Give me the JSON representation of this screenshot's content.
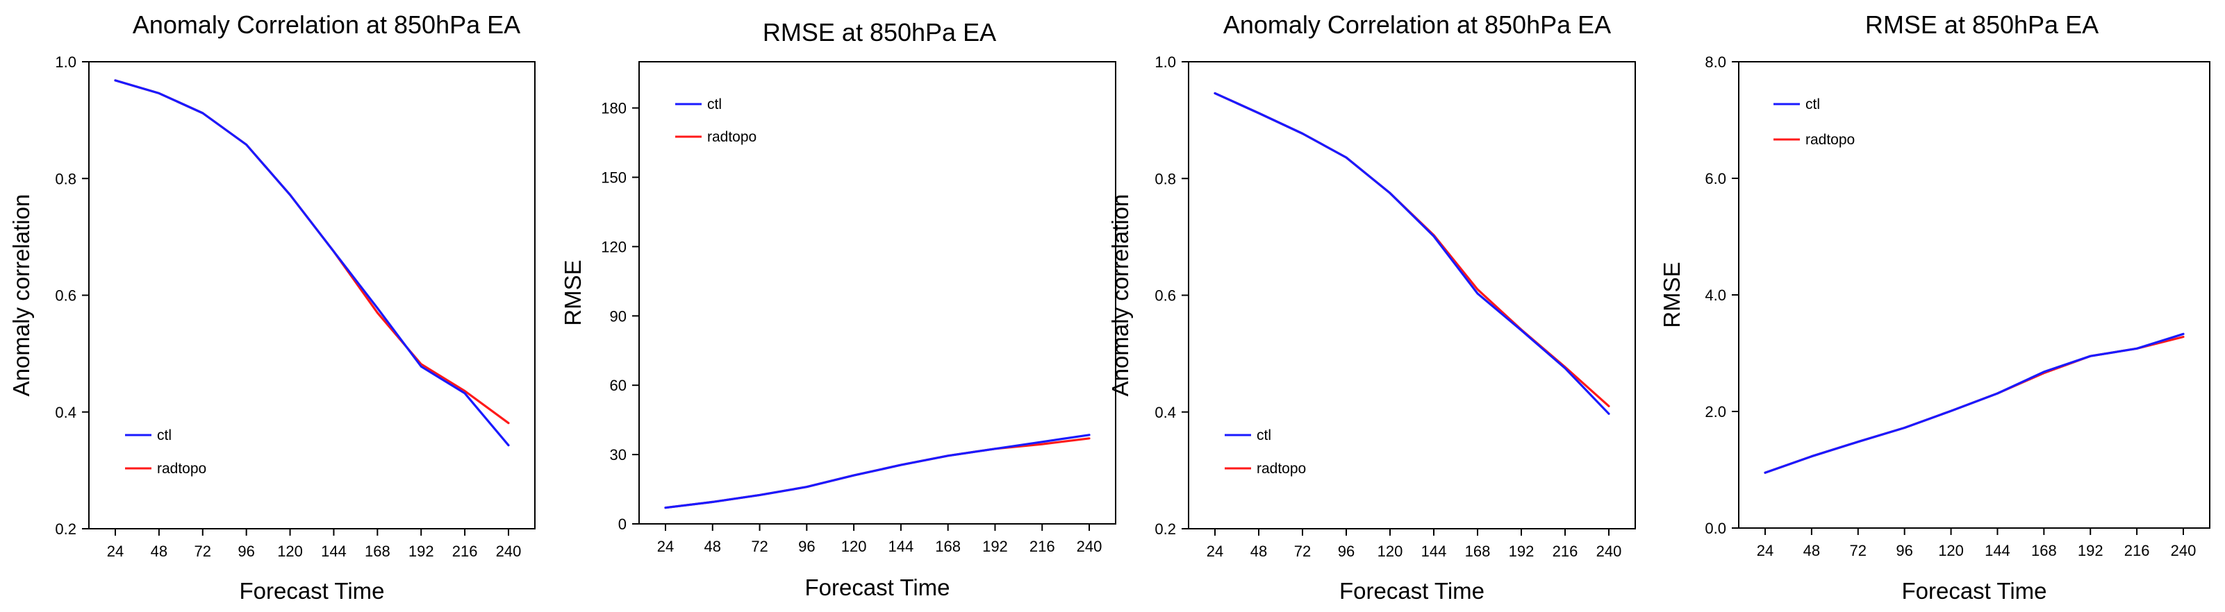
{
  "chart_data": [
    {
      "type": "line",
      "title": "Anomaly Correlation at 850hPa EA",
      "xlabel": "Forecast Time",
      "ylabel": "Anomaly correlation",
      "categories": [
        "24",
        "48",
        "72",
        "96",
        "120",
        "144",
        "168",
        "192",
        "216",
        "240"
      ],
      "ylim": [
        0.2,
        1.0
      ],
      "yticks": [
        0.2,
        0.4,
        0.6,
        0.8,
        1.0
      ],
      "ytick_labels": [
        "0.2",
        "0.4",
        "0.6",
        "0.8",
        "1.0"
      ],
      "legend_position": "bottom-left",
      "series": [
        {
          "name": "ctl",
          "color": "#1a1aff",
          "values": [
            0.968,
            0.946,
            0.912,
            0.858,
            0.772,
            0.675,
            0.578,
            0.478,
            0.432,
            0.343
          ]
        },
        {
          "name": "radtopo",
          "color": "#ff1a1a",
          "values": [
            0.968,
            0.946,
            0.912,
            0.858,
            0.772,
            0.675,
            0.57,
            0.482,
            0.436,
            0.381
          ]
        }
      ]
    },
    {
      "type": "line",
      "title": "RMSE at 850hPa EA",
      "xlabel": "Forecast Time",
      "ylabel": "RMSE",
      "categories": [
        "24",
        "48",
        "72",
        "96",
        "120",
        "144",
        "168",
        "192",
        "216",
        "240"
      ],
      "ylim": [
        0,
        200
      ],
      "yticks": [
        0,
        30,
        60,
        90,
        120,
        150,
        180
      ],
      "ytick_labels": [
        "0",
        "30",
        "60",
        "90",
        "120",
        "150",
        "180"
      ],
      "legend_position": "top-left",
      "series": [
        {
          "name": "ctl",
          "color": "#1a1aff",
          "values": [
            7.0,
            9.5,
            12.5,
            16.0,
            21.0,
            25.5,
            29.5,
            32.5,
            35.5,
            38.5
          ]
        },
        {
          "name": "radtopo",
          "color": "#ff1a1a",
          "values": [
            7.0,
            9.5,
            12.5,
            16.0,
            21.0,
            25.5,
            29.5,
            32.5,
            34.5,
            37.0
          ]
        }
      ]
    },
    {
      "type": "line",
      "title": "Anomaly Correlation at 850hPa EA",
      "xlabel": "Forecast Time",
      "ylabel": "Anomaly correlation",
      "categories": [
        "24",
        "48",
        "72",
        "96",
        "120",
        "144",
        "168",
        "192",
        "216",
        "240"
      ],
      "ylim": [
        0.2,
        1.0
      ],
      "yticks": [
        0.2,
        0.4,
        0.6,
        0.8,
        1.0
      ],
      "ytick_labels": [
        "0.2",
        "0.4",
        "0.6",
        "0.8",
        "1.0"
      ],
      "legend_position": "bottom-left",
      "series": [
        {
          "name": "ctl",
          "color": "#1a1aff",
          "values": [
            0.946,
            0.912,
            0.877,
            0.836,
            0.775,
            0.701,
            0.603,
            0.54,
            0.475,
            0.397
          ]
        },
        {
          "name": "radtopo",
          "color": "#ff1a1a",
          "values": [
            0.946,
            0.912,
            0.877,
            0.836,
            0.775,
            0.703,
            0.61,
            0.541,
            0.477,
            0.41
          ]
        }
      ]
    },
    {
      "type": "line",
      "title": "RMSE at 850hPa EA",
      "xlabel": "Forecast Time",
      "ylabel": "RMSE",
      "categories": [
        "24",
        "48",
        "72",
        "96",
        "120",
        "144",
        "168",
        "192",
        "216",
        "240"
      ],
      "ylim": [
        0,
        8
      ],
      "yticks": [
        0,
        2,
        4,
        6,
        8
      ],
      "ytick_labels": [
        "0.0",
        "2.0",
        "4.0",
        "6.0",
        "8.0"
      ],
      "legend_position": "top-left",
      "series": [
        {
          "name": "ctl",
          "color": "#1a1aff",
          "values": [
            0.95,
            1.23,
            1.48,
            1.72,
            2.01,
            2.31,
            2.68,
            2.95,
            3.08,
            3.33
          ]
        },
        {
          "name": "radtopo",
          "color": "#ff1a1a",
          "values": [
            0.95,
            1.23,
            1.48,
            1.72,
            2.01,
            2.31,
            2.66,
            2.95,
            3.08,
            3.28
          ]
        }
      ]
    }
  ]
}
